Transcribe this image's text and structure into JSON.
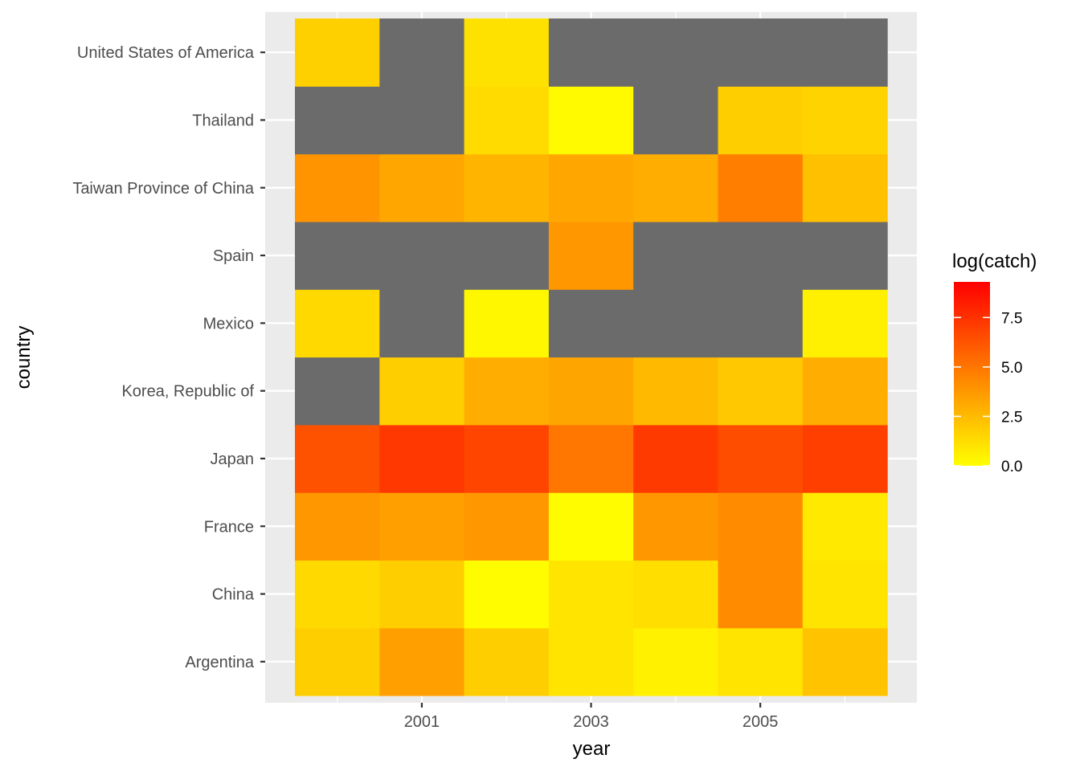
{
  "chart_data": {
    "type": "heatmap",
    "title": "",
    "xlabel": "year",
    "ylabel": "country",
    "x": [
      2000,
      2001,
      2002,
      2003,
      2004,
      2005,
      2006
    ],
    "x_tick_labels": [
      "2001",
      "2003",
      "2005"
    ],
    "x_tick_values": [
      2001,
      2003,
      2005
    ],
    "y": [
      "Argentina",
      "China",
      "France",
      "Japan",
      "Korea, Republic of",
      "Mexico",
      "Spain",
      "Taiwan Province of China",
      "Thailand",
      "United States of America"
    ],
    "values": [
      [
        1.8,
        3.5,
        1.8,
        1.0,
        0.5,
        1.0,
        2.2
      ],
      [
        1.4,
        1.8,
        0.1,
        1.0,
        1.2,
        4.2,
        1.0
      ],
      [
        3.8,
        3.5,
        3.8,
        0.1,
        3.8,
        4.2,
        0.8
      ],
      [
        6.3,
        7.3,
        6.8,
        5.0,
        7.2,
        6.5,
        7.0
      ],
      [
        null,
        1.8,
        3.0,
        3.3,
        2.5,
        2.0,
        3.0
      ],
      [
        1.4,
        null,
        0.3,
        null,
        null,
        null,
        0.6
      ],
      [
        null,
        null,
        null,
        3.8,
        null,
        null,
        null
      ],
      [
        3.9,
        3.2,
        2.7,
        3.2,
        3.0,
        4.7,
        2.3
      ],
      [
        null,
        null,
        1.3,
        0.2,
        null,
        1.8,
        1.6
      ],
      [
        1.7,
        null,
        1.1,
        null,
        null,
        null,
        null
      ]
    ],
    "na_color": "#6b6b6b",
    "color_low": "#ffff00",
    "color_high": "#ff0000",
    "color_range": [
      0,
      9.3
    ],
    "legend": {
      "title": "log(catch)",
      "breaks": [
        0.0,
        2.5,
        5.0,
        7.5
      ],
      "labels": [
        "0.0",
        "2.5",
        "5.0",
        "7.5"
      ],
      "placement": "right"
    },
    "grid": true
  }
}
